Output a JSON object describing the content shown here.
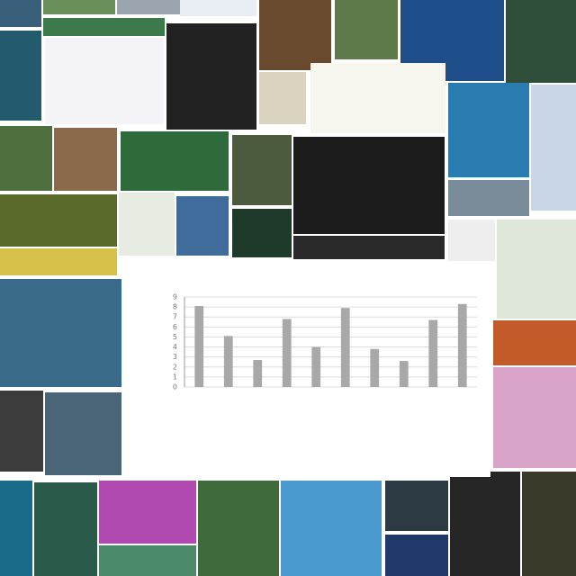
{
  "chart_data": {
    "type": "bar",
    "categories": [
      null,
      null,
      null,
      null,
      null,
      null,
      null,
      null,
      null,
      null
    ],
    "values": [
      8.1,
      5.1,
      2.7,
      6.8,
      4.0,
      7.9,
      3.8,
      2.6,
      6.7,
      8.3
    ],
    "color": "#a8a8a8",
    "ylim": [
      0,
      9
    ],
    "yticks": [
      0,
      1,
      2,
      3,
      4,
      5,
      6,
      7,
      8,
      9
    ],
    "grid": true
  }
}
